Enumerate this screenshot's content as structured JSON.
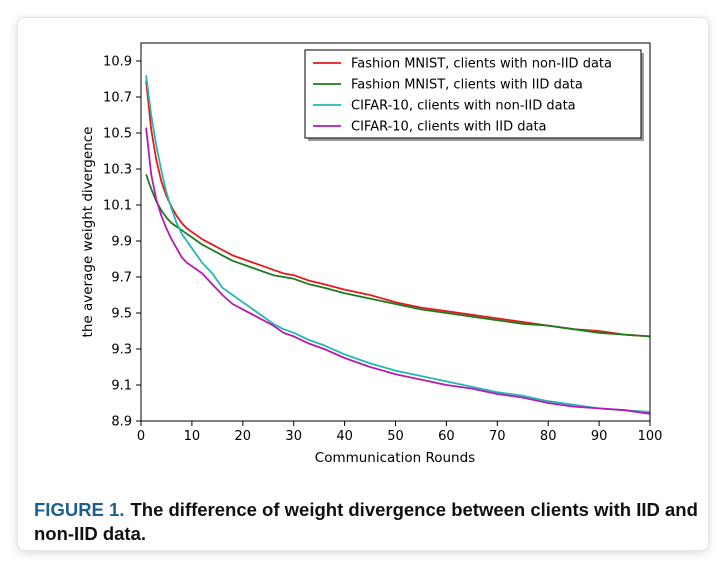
{
  "caption": {
    "label": "FIGURE 1.",
    "text": "The difference of weight divergence between clients with IID and non-IID data."
  },
  "chart_data": {
    "type": "line",
    "xlabel": "Communication Rounds",
    "ylabel": "the average weight divergence",
    "xlim": [
      0,
      100
    ],
    "ylim": [
      8.9,
      11.0
    ],
    "xticks": [
      0,
      10,
      20,
      30,
      40,
      50,
      60,
      70,
      80,
      90,
      100
    ],
    "yticks": [
      8.9,
      9.1,
      9.3,
      9.5,
      9.7,
      9.9,
      10.1,
      10.3,
      10.5,
      10.7,
      10.9
    ],
    "grid": false,
    "legend_position": "top-right",
    "x": [
      1,
      2,
      3,
      4,
      5,
      6,
      7,
      8,
      9,
      10,
      12,
      14,
      16,
      18,
      20,
      22,
      24,
      26,
      28,
      30,
      33,
      36,
      40,
      45,
      50,
      55,
      60,
      65,
      70,
      75,
      80,
      85,
      90,
      95,
      100
    ],
    "series": [
      {
        "name": "Fashion MNIST, clients with non-IID data",
        "color": "#e41a1c",
        "values": [
          10.79,
          10.52,
          10.35,
          10.23,
          10.15,
          10.09,
          10.04,
          10.0,
          9.97,
          9.95,
          9.91,
          9.88,
          9.85,
          9.82,
          9.8,
          9.78,
          9.76,
          9.74,
          9.72,
          9.71,
          9.68,
          9.66,
          9.63,
          9.6,
          9.56,
          9.53,
          9.51,
          9.49,
          9.47,
          9.45,
          9.43,
          9.41,
          9.4,
          9.38,
          9.37
        ]
      },
      {
        "name": "Fashion MNIST, clients with IID data",
        "color": "#1f7a1f",
        "values": [
          10.27,
          10.19,
          10.12,
          10.07,
          10.03,
          10.0,
          9.98,
          9.96,
          9.94,
          9.92,
          9.88,
          9.85,
          9.82,
          9.79,
          9.77,
          9.75,
          9.73,
          9.71,
          9.7,
          9.69,
          9.66,
          9.64,
          9.61,
          9.58,
          9.55,
          9.52,
          9.5,
          9.48,
          9.46,
          9.44,
          9.43,
          9.41,
          9.39,
          9.38,
          9.37
        ]
      },
      {
        "name": "CIFAR-10, clients with non-IID data",
        "color": "#26b5b5",
        "values": [
          10.82,
          10.6,
          10.43,
          10.29,
          10.17,
          10.08,
          10.0,
          9.94,
          9.9,
          9.86,
          9.78,
          9.72,
          9.64,
          9.6,
          9.56,
          9.52,
          9.48,
          9.44,
          9.41,
          9.39,
          9.35,
          9.32,
          9.27,
          9.22,
          9.18,
          9.15,
          9.12,
          9.09,
          9.06,
          9.04,
          9.01,
          8.99,
          8.97,
          8.96,
          8.95
        ]
      },
      {
        "name": "CIFAR-10, clients with IID data",
        "color": "#b21cb2",
        "values": [
          10.53,
          10.27,
          10.13,
          10.04,
          9.97,
          9.91,
          9.86,
          9.81,
          9.78,
          9.76,
          9.72,
          9.66,
          9.6,
          9.55,
          9.52,
          9.49,
          9.46,
          9.43,
          9.39,
          9.37,
          9.33,
          9.3,
          9.25,
          9.2,
          9.16,
          9.13,
          9.1,
          9.08,
          9.05,
          9.03,
          9.0,
          8.98,
          8.97,
          8.96,
          8.94
        ]
      }
    ]
  }
}
